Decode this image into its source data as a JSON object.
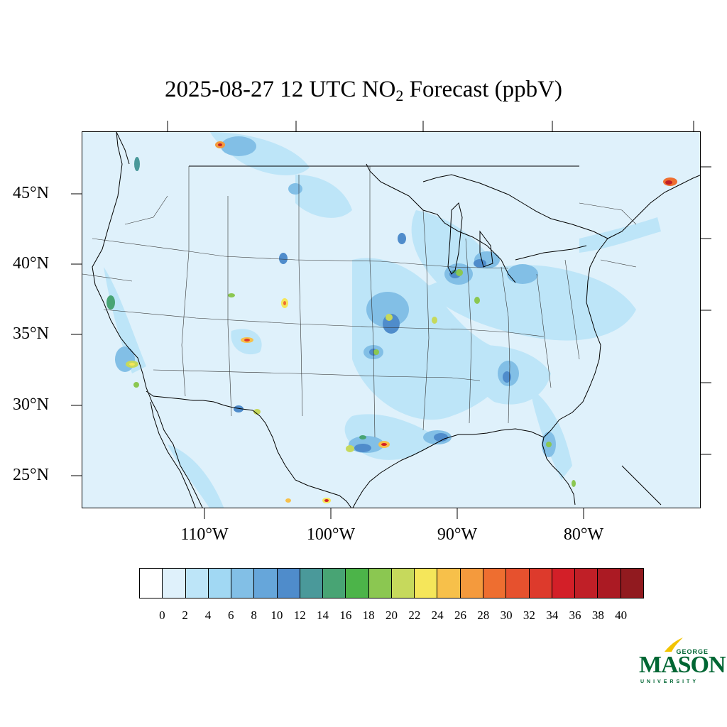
{
  "title": {
    "prefix": "2025-08-27 12 UTC NO",
    "subscript": "2",
    "suffix": " Forecast (ppbV)"
  },
  "map": {
    "latitude_labels": [
      "45°N",
      "40°N",
      "35°N",
      "30°N",
      "25°N"
    ],
    "longitude_labels": [
      "110°W",
      "100°W",
      "90°W",
      "80°W"
    ],
    "background_color": "#dff1fb"
  },
  "colorbar": {
    "colors": [
      "#ffffff",
      "#dff1fb",
      "#bde5f8",
      "#a1d8f3",
      "#82bfe6",
      "#66a6da",
      "#4f8ccb",
      "#4a999a",
      "#48a474",
      "#4cb449",
      "#8bc751",
      "#c6d95c",
      "#f5e65a",
      "#f7c04a",
      "#f49a3d",
      "#ee6e30",
      "#e6512e",
      "#dd3a2c",
      "#d31f28",
      "#c01f27",
      "#ab1a23",
      "#911a1f"
    ],
    "labels": [
      "0",
      "2",
      "4",
      "6",
      "8",
      "10",
      "12",
      "14",
      "16",
      "18",
      "20",
      "22",
      "24",
      "26",
      "28",
      "30",
      "32",
      "34",
      "36",
      "38",
      "40"
    ]
  },
  "logo": {
    "line1": "GEORGE",
    "line2": "MASON",
    "line3": "UNIVERSITY",
    "color": "#006633",
    "accent": "#f2c400"
  }
}
